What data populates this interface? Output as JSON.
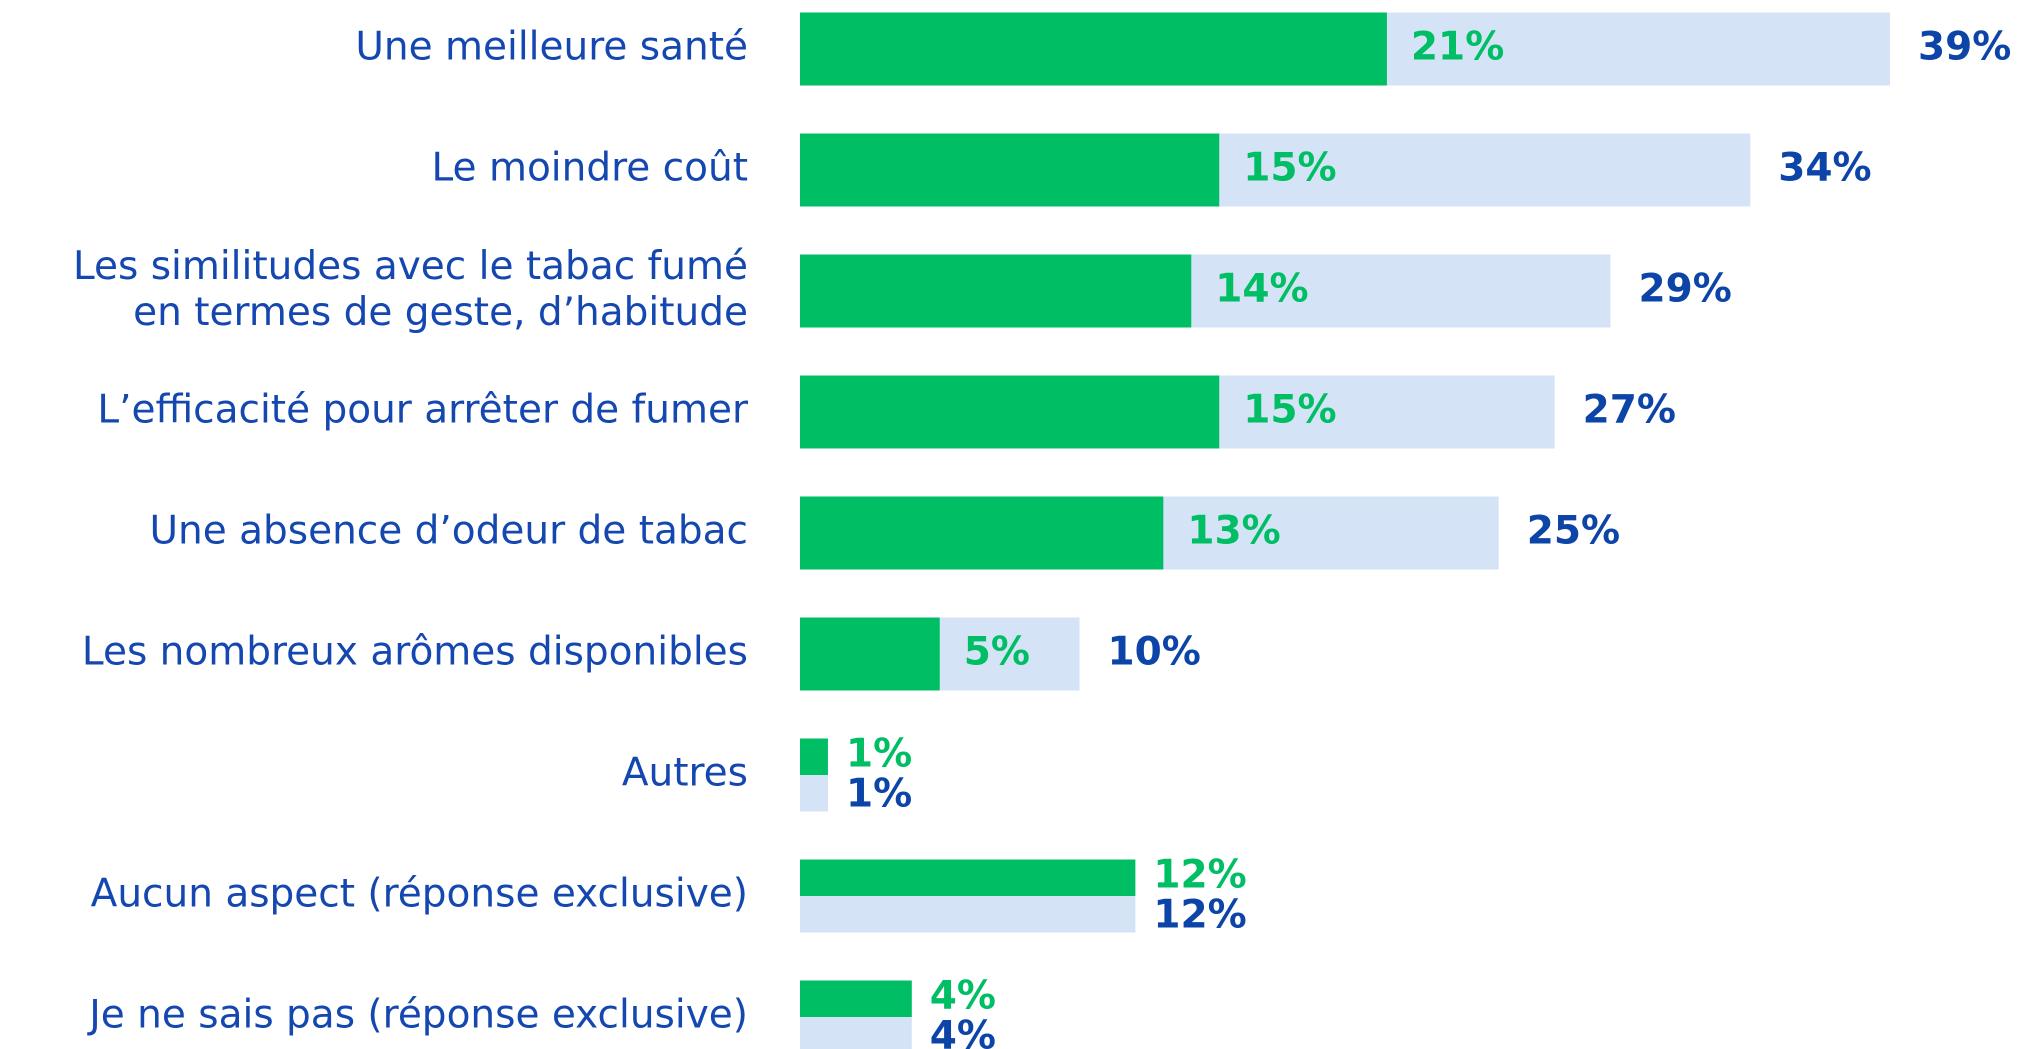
{
  "chart_data": {
    "type": "bar",
    "orientation": "horizontal",
    "categories": [
      "Une meilleure santé",
      "Le moindre coût",
      "Les similitudes avec le tabac fumé\nen termes de geste, d’habitude",
      "L’efficacité pour arrêter de fumer",
      "Une absence d’odeur de tabac",
      "Les nombreux arômes disponibles",
      "Autres",
      "Aucun aspect (réponse exclusive)",
      "Je ne sais pas (réponse exclusive)"
    ],
    "series": [
      {
        "color": "#00be64",
        "values": [
          21,
          15,
          14,
          15,
          13,
          5,
          1,
          12,
          4
        ],
        "value_labels": [
          "21%",
          "15%",
          "14%",
          "15%",
          "13%",
          "5%",
          "1%",
          "12%",
          "4%"
        ]
      },
      {
        "color": "#d5e3f7",
        "label_color": "#0d44a8",
        "values": [
          39,
          34,
          29,
          27,
          25,
          10,
          1,
          12,
          4
        ],
        "value_labels": [
          "39%",
          "34%",
          "29%",
          "27%",
          "25%",
          "10%",
          "1%",
          "12%",
          "4%"
        ]
      }
    ]
  }
}
